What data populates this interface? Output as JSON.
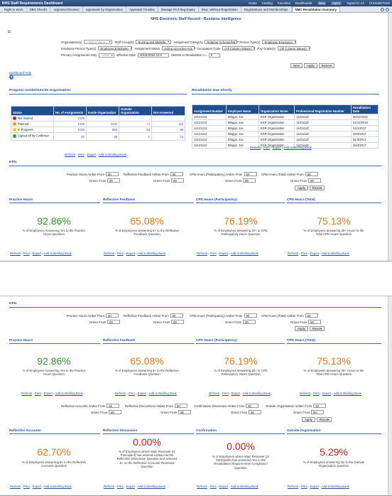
{
  "app": {
    "title": "NHS Staff Requirements Dashboard",
    "menu": [
      "Home",
      "Catalog",
      "Favorites",
      "Dashboards",
      "New",
      "Open",
      "Signed In As"
    ],
    "user": "CHOLBDTO02",
    "tabs": [
      "Right to Work",
      "DBS Checks",
      "Appraisal Reviews",
      "Appraisals by Organisation",
      "Appraisal Timeline",
      "Manage Prof Reg Expiry",
      "Emp. Without Registration",
      "Registrations and Memberships",
      "NMC Revalidation Summary"
    ],
    "active_tab": "NMC Revalidation Summary"
  },
  "page": {
    "title": "NHS Electronic Staff Record - Business Intelligence",
    "prompts": {
      "organisation_label": "Organisation(s)",
      "organisation_value": "--Select Value--",
      "staff_group_label": "Staff Group(s)",
      "staff_group_value": "Nursing and Midwife",
      "assignment_category_label": "Assignment Category",
      "assignment_category_value": "Retainer Scheme/Nu",
      "person_type_label": "Person Type(s)",
      "person_type_value": "Employee;Employee",
      "emp_person_type_label": "Employee Person Type(s)",
      "emp_person_type_value": "Employee;Employee",
      "assignment_status_label": "Assignment Status",
      "assignment_status_value": "Acting Up;Active Ass",
      "occupation_code_label": "Occupation Code",
      "occupation_code_value": "(All Column Values)",
      "pay_grade_label": "Pay Grade(s)",
      "pay_grade_value": "(All Column Values)",
      "primary_label": "Primary Assignments Only",
      "primary_value": "--Sele",
      "effective_date_label": "Effective Date",
      "effective_date_value": "20/11/2016 12:0",
      "months_label": "Months to Revalidation <=",
      "months_value": "6"
    },
    "buttons": {
      "next": "Next",
      "apply": "Apply",
      "reset": "Reset"
    },
    "dashboard_help": "Dashboard Help"
  },
  "progress": {
    "title": "Progress Inside/Outside Organisation",
    "headers": [
      "Status",
      "No. of Assignments",
      "Inside Organisation",
      "Outside Organisation",
      "Not Answered"
    ],
    "rows": [
      {
        "status": "Not Started",
        "color": "#cc1f1f",
        "n": "2176",
        "inside": "",
        "outside": "",
        "na": ""
      },
      {
        "status": "Planned",
        "color": "#e09a17",
        "n": "1419",
        "inside": "1232",
        "outside": "74",
        "na": "113"
      },
      {
        "status": "In Progress",
        "color": "#e6c92a",
        "n": "1016",
        "inside": "864",
        "outside": "53",
        "na": "99"
      },
      {
        "status": "Signed off by Confirmer",
        "color": "#3d9b2c",
        "n": "62",
        "inside": "38",
        "outside": "1",
        "na": "23"
      }
    ]
  },
  "revalidation": {
    "title": "Revalidation Due Shortly",
    "headers": [
      "Assignment Number",
      "Employee Name",
      "Organisation Name",
      "Professional Registration Number",
      "Revalidation Date"
    ],
    "rows": [
      [
        "12121212",
        "Bloggs, Joe",
        "ESR Organisation",
        "11Z1111Z",
        "30/11/2016"
      ],
      [
        "12121212",
        "Bloggs, Joe",
        "ESR Organisation",
        "11Z1111Z",
        "31/12/2016"
      ],
      [
        "12121212",
        "Bloggs, Joe",
        "ESR Organisation",
        "11Z1111Z",
        "31/1/2017"
      ],
      [
        "12121212",
        "Bloggs, Joe",
        "ESR Organisation",
        "11Z1111Z",
        "28/2/2017"
      ],
      [
        "12121212",
        "Bloggs, Joe",
        "ESR Organisation",
        "11Z1111Z",
        "31/3/2017"
      ],
      [
        "12121212",
        "Bloggs, Joe",
        "ESR Organisation",
        "11Z1111Z",
        "30/4/2017"
      ]
    ]
  },
  "links": {
    "refresh": "Refresh",
    "print": "Print",
    "export": "Export",
    "briefing": "Add to Briefing Book",
    "sep": "-"
  },
  "kpis": {
    "title": "KPIs",
    "amber_practice": "Practice Hours Amber From",
    "amber_practice_value": "60",
    "amber_reflective": "Reflective Feedback Amber From",
    "amber_reflective_value": "60",
    "amber_cpd_part": "CPD Hours (Participatory) Amber From",
    "amber_cpd_part_value": "60",
    "amber_cpd_total": "CPD Hours (Total) Amber From",
    "amber_cpd_total_value": "60",
    "green_from": "Green From",
    "green_value": "80",
    "amber_accounts": "Reflective Accounts Amber From",
    "amber_accounts_value": "60",
    "amber_discussion": "Reflective Discussions Amber From",
    "amber_discussion_value": "60",
    "amber_confirmation": "Confirmation Discussion Amber From",
    "amber_confirmation_value": "60",
    "amber_outside": "Outside Organisation Amber From",
    "amber_outside_value": "60",
    "tiles1": [
      {
        "title": "Practice Hours",
        "value": "92.86%",
        "color": "#2e9a2a",
        "caption": "% of Employees Answering Yes to the Practice Hours Question"
      },
      {
        "title": "Reflective Feedback",
        "value": "65.08%",
        "color": "#e8771b",
        "caption": "% of Employees answering 5+ to the Reflective Feedback Question"
      },
      {
        "title": "CPD Hours (Participatory)",
        "value": "76.19%",
        "color": "#e8771b",
        "caption": "% of Employees answering 20+ to CPD Participatory Hours Question"
      },
      {
        "title": "CPD Hours (Total)",
        "value": "75.13%",
        "color": "#e8771b",
        "caption": "% of Employees answering 35+ Hours to the Total CPD Hours Question"
      }
    ],
    "tiles2": [
      {
        "title": "Reflective Accounts",
        "value": "62.70%",
        "color": "#e8771b",
        "caption": "% of Employees answering 5+ to the Reflective Accounts Question"
      },
      {
        "title": "Reflective Discussion",
        "value": "0.00%",
        "color": "#d0171c",
        "caption": "% of Employees where Main Reviewer (or Participant) has entered a Date into the Reflective Discussion Question and selected 5+ on the Reflective Accounts Reviewed Question"
      },
      {
        "title": "Confirmation",
        "value": "0.00%",
        "color": "#d0171c",
        "caption": "% of Employees where Main Reviewer (or Participant) has answered Yes to the Revalidation Requirements Compliance Question"
      },
      {
        "title": "Outside Organisation",
        "value": "5.29%",
        "color": "#d0171c",
        "caption": "% of Employees answering No to the Outside Organisation Question"
      }
    ]
  }
}
